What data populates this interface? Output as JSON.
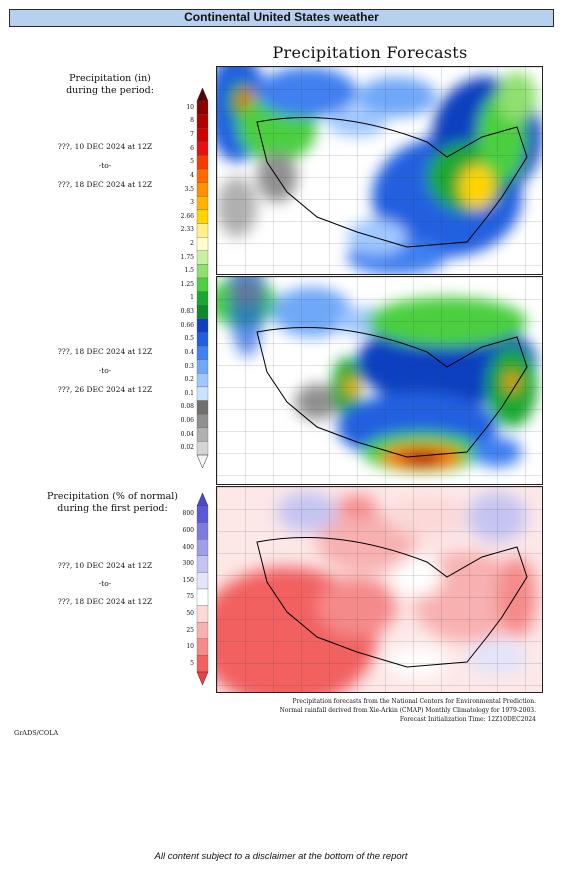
{
  "header": {
    "title": "Continental United States weather"
  },
  "main_title": "Precipitation Forecasts",
  "precip_legend": {
    "title_line1": "Precipitation (in)",
    "title_line2": "during the period:",
    "scale": [
      {
        "v": "10",
        "c": "#8b0000"
      },
      {
        "v": "8",
        "c": "#b00000"
      },
      {
        "v": "7",
        "c": "#d00000"
      },
      {
        "v": "6",
        "c": "#e81010"
      },
      {
        "v": "5",
        "c": "#f73c00"
      },
      {
        "v": "4",
        "c": "#ff6a00"
      },
      {
        "v": "3.5",
        "c": "#ff9000"
      },
      {
        "v": "3",
        "c": "#ffb400"
      },
      {
        "v": "2.66",
        "c": "#ffd400"
      },
      {
        "v": "2.33",
        "c": "#fff08a"
      },
      {
        "v": "2",
        "c": "#ffffcc"
      },
      {
        "v": "1.75",
        "c": "#c8f0a0"
      },
      {
        "v": "1.5",
        "c": "#90e070"
      },
      {
        "v": "1.25",
        "c": "#4ccf40"
      },
      {
        "v": "1",
        "c": "#1aa830"
      },
      {
        "v": "0.83",
        "c": "#0a8a2a"
      },
      {
        "v": "0.66",
        "c": "#1040c0"
      },
      {
        "v": "0.5",
        "c": "#2060e0"
      },
      {
        "v": "0.4",
        "c": "#4080f0"
      },
      {
        "v": "0.3",
        "c": "#70a8f8"
      },
      {
        "v": "0.2",
        "c": "#a0c8ff"
      },
      {
        "v": "0.1",
        "c": "#c8e4ff"
      },
      {
        "v": "0.08",
        "c": "#707070"
      },
      {
        "v": "0.06",
        "c": "#909090"
      },
      {
        "v": "0.04",
        "c": "#b0b0b0"
      },
      {
        "v": "0.02",
        "c": "#d4d4d4"
      }
    ],
    "top_arrow_color": "#5a0000",
    "bottom_arrow_color": "#f4f4f4"
  },
  "periods": [
    {
      "from": "???, 10 DEC 2024 at 12Z",
      "to": "-to-",
      "until": "???, 18 DEC 2024 at 12Z"
    },
    {
      "from": "???, 18 DEC 2024 at 12Z",
      "to": "-to-",
      "until": "???, 26 DEC 2024 at 12Z"
    },
    {
      "from": "???, 10 DEC 2024 at 12Z",
      "to": "-to-",
      "until": "???, 18 DEC 2024 at 12Z"
    }
  ],
  "pct_legend": {
    "title_line1": "Precipitation (% of normal)",
    "title_line2": "during the first period:",
    "scale": [
      {
        "v": "800",
        "c": "#5a5ad8"
      },
      {
        "v": "600",
        "c": "#7c7ce0"
      },
      {
        "v": "400",
        "c": "#a0a0ea"
      },
      {
        "v": "300",
        "c": "#c4c4f2"
      },
      {
        "v": "150",
        "c": "#e4e4fa"
      },
      {
        "v": "75",
        "c": "#ffffff"
      },
      {
        "v": "50",
        "c": "#fcd8d8"
      },
      {
        "v": "25",
        "c": "#f8b0b0"
      },
      {
        "v": "10",
        "c": "#f58a8a"
      },
      {
        "v": "5",
        "c": "#f26060"
      }
    ],
    "top_arrow_color": "#4a4ad0",
    "bottom_arrow_color": "#ee4040"
  },
  "footer": {
    "line1": "Precipitation forecasts from the National Centers for Environmental Prediction.",
    "line2": "Normal rainfall derived from Xie-Arkin (CMAP) Monthly Climatology for 1979-2003.",
    "line3": "Forecast Initialization Time: 12Z10DEC2024"
  },
  "credit": "GrADS/COLA",
  "disclaimer": "All content subject to a disclaimer at the bottom of the report"
}
